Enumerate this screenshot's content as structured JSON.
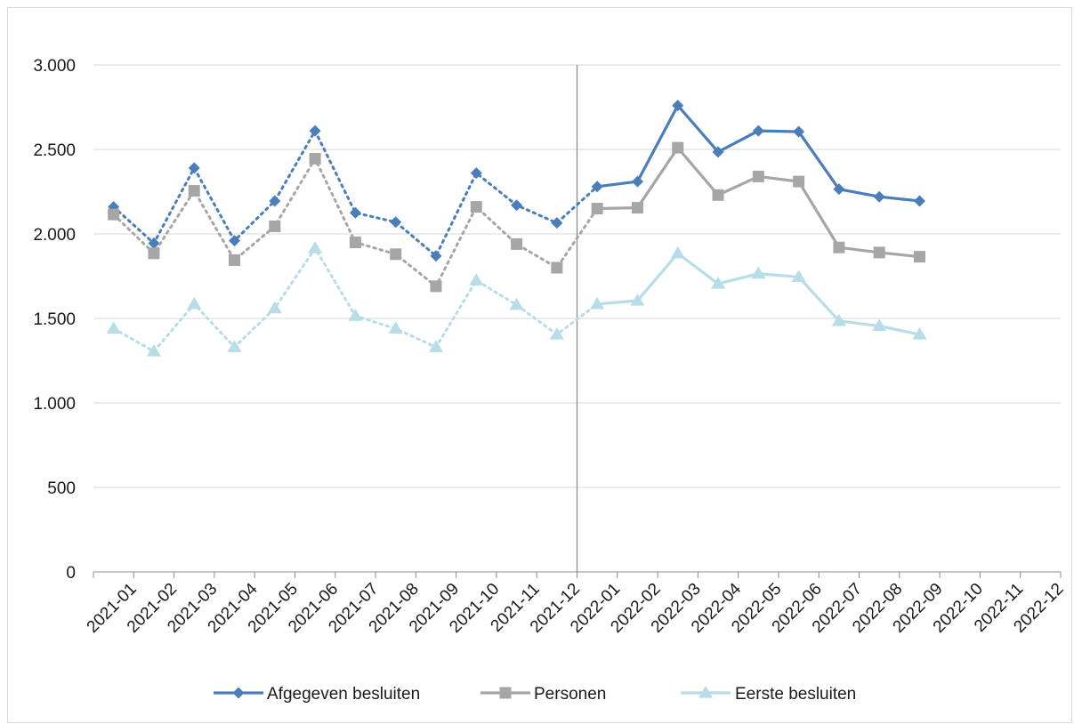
{
  "chart_data": {
    "type": "line",
    "title": "",
    "xlabel": "",
    "ylabel": "",
    "categories": [
      "2021-01",
      "2021-02",
      "2021-03",
      "2021-04",
      "2021-05",
      "2021-06",
      "2021-07",
      "2021-08",
      "2021-09",
      "2021-10",
      "2021-11",
      "2021-12",
      "2022-01",
      "2022-02",
      "2022-03",
      "2022-04",
      "2022-05",
      "2022-06",
      "2022-07",
      "2022-08",
      "2022-09",
      "2022-10",
      "2022-11",
      "2022-12"
    ],
    "ylim": [
      0,
      3000
    ],
    "yticks": [
      0,
      500,
      1000,
      1500,
      2000,
      2500,
      3000
    ],
    "ytick_labels": [
      "0",
      "500",
      "1.000",
      "1.500",
      "2.000",
      "2.500",
      "3.000"
    ],
    "grid": "horizontal",
    "legend_position": "bottom",
    "divider_after_category": "2021-12",
    "series": [
      {
        "name": "Afgegeven besluiten",
        "color": "#4a7ebb",
        "marker": "diamond",
        "values": [
          2160,
          1945,
          2390,
          1960,
          2195,
          2610,
          2125,
          2070,
          1870,
          2360,
          2170,
          2065,
          2280,
          2310,
          2760,
          2485,
          2610,
          2605,
          2265,
          2220,
          2195,
          null,
          null,
          null
        ]
      },
      {
        "name": "Personen",
        "color": "#a6a6a6",
        "marker": "square",
        "values": [
          2115,
          1885,
          2255,
          1845,
          2045,
          2445,
          1950,
          1880,
          1690,
          2160,
          1940,
          1800,
          2150,
          2155,
          2510,
          2230,
          2340,
          2310,
          1920,
          1890,
          1865,
          null,
          null,
          null
        ]
      },
      {
        "name": "Eerste besluiten",
        "color": "#b7dde8",
        "marker": "triangle",
        "values": [
          1440,
          1305,
          1585,
          1330,
          1560,
          1915,
          1515,
          1440,
          1330,
          1725,
          1580,
          1405,
          1585,
          1605,
          1885,
          1705,
          1765,
          1745,
          1485,
          1455,
          1405,
          null,
          null,
          null
        ]
      }
    ]
  }
}
